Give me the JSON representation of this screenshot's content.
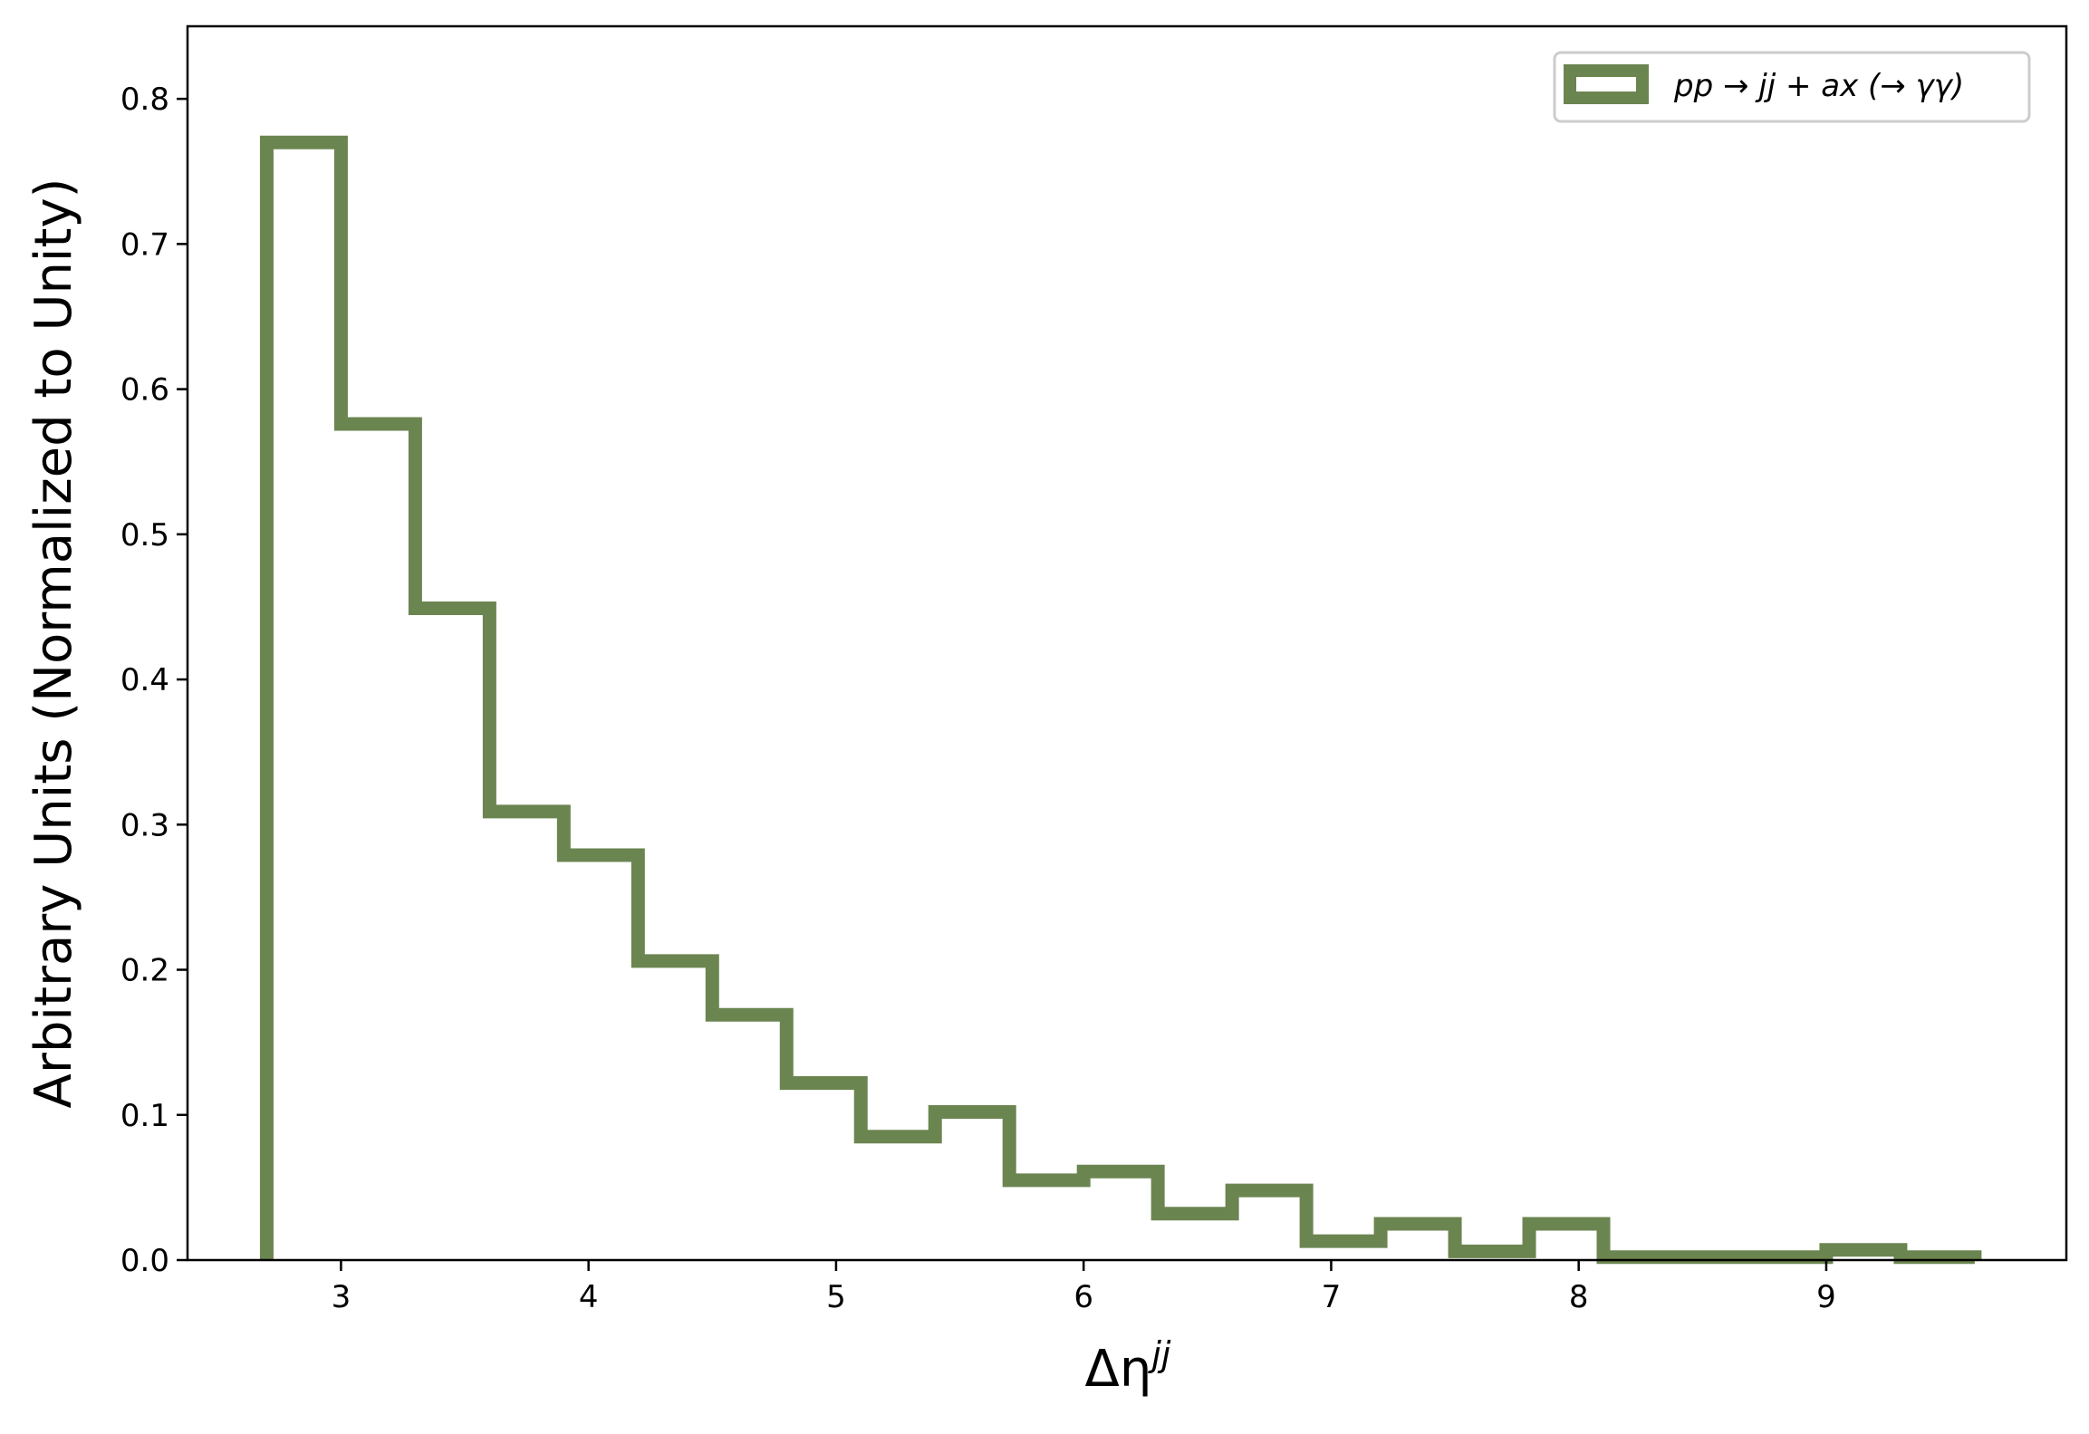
{
  "chart_data": {
    "type": "histogram",
    "xlabel": {
      "base": "Δη",
      "superscript": "jj"
    },
    "ylabel": "Arbitrary Units (Normalized to Unity)",
    "xlim": [
      2.38,
      9.97
    ],
    "ylim": [
      0.0,
      0.85
    ],
    "x_ticks": [
      3,
      4,
      5,
      6,
      7,
      8,
      9
    ],
    "x_tick_labels": [
      "3",
      "4",
      "5",
      "6",
      "7",
      "8",
      "9"
    ],
    "y_ticks": [
      0.0,
      0.1,
      0.2,
      0.3,
      0.4,
      0.5,
      0.6,
      0.7,
      0.8
    ],
    "y_tick_labels": [
      "0.0",
      "0.1",
      "0.2",
      "0.3",
      "0.4",
      "0.5",
      "0.6",
      "0.7",
      "0.8"
    ],
    "legend": {
      "location": "upper right"
    },
    "series": [
      {
        "name": "pp → jj + ax (→ γγ)",
        "color": "#6b8550",
        "histtype": "step",
        "bin_edges": [
          2.7,
          3.0,
          3.3,
          3.6,
          3.9,
          4.2,
          4.5,
          4.8,
          5.1,
          5.4,
          5.7,
          6.0,
          6.3,
          6.6,
          6.9,
          7.2,
          7.5,
          7.8,
          8.1,
          8.4,
          8.7,
          9.0,
          9.3,
          9.6
        ],
        "values": [
          0.77,
          0.576,
          0.449,
          0.309,
          0.279,
          0.206,
          0.169,
          0.122,
          0.085,
          0.102,
          0.055,
          0.061,
          0.032,
          0.048,
          0.013,
          0.025,
          0.006,
          0.025,
          0.002,
          0.002,
          0.002,
          0.007,
          0.002
        ]
      }
    ]
  }
}
